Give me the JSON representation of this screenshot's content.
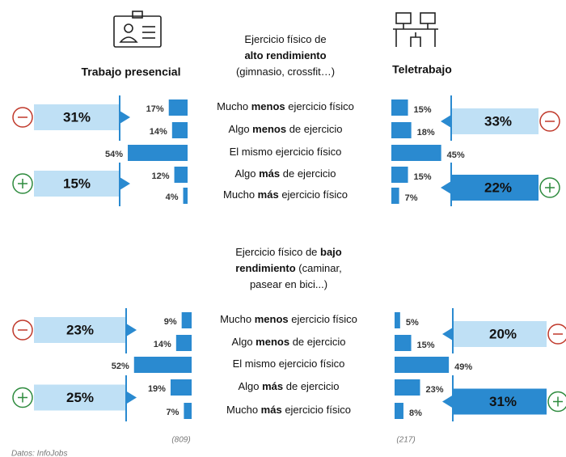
{
  "columns": [
    "Trabajo presencial",
    "Teletrabajo"
  ],
  "samples": [
    "(809)",
    "(217)"
  ],
  "source": "Datos: InfoJobs",
  "chart_data": [
    {
      "type": "bar",
      "title_lines": [
        [
          {
            "text": "Ejercicio físico de"
          }
        ],
        [
          {
            "text": "alto rendimiento",
            "bold": true
          }
        ],
        [
          {
            "text": "(gimnasio, crossfit…)"
          }
        ]
      ],
      "categories": [
        [
          {
            "text": "Mucho "
          },
          {
            "text": "menos",
            "bold": true
          },
          {
            "text": " ejercicio físico"
          }
        ],
        [
          {
            "text": "Algo "
          },
          {
            "text": "menos",
            "bold": true
          },
          {
            "text": " de ejercicio"
          }
        ],
        [
          {
            "text": "El mismo ejercicio físico"
          }
        ],
        [
          {
            "text": "Algo "
          },
          {
            "text": "más",
            "bold": true
          },
          {
            "text": " de ejercicio"
          }
        ],
        [
          {
            "text": "Mucho "
          },
          {
            "text": "más",
            "bold": true
          },
          {
            "text": " ejercicio físico"
          }
        ]
      ],
      "xlim": [
        0,
        100
      ],
      "series": [
        {
          "name": "Trabajo presencial",
          "color": "#2a8ad0",
          "values": [
            17,
            14,
            54,
            12,
            4
          ],
          "value_labels": [
            "17%",
            "14%",
            "54%",
            "12%",
            "4%"
          ],
          "summary": [
            {
              "value": 31,
              "label": "31%",
              "color": "#bfe0f5"
            },
            {
              "value": 15,
              "label": "15%",
              "color": "#bfe0f5"
            }
          ]
        },
        {
          "name": "Teletrabajo",
          "color": "#2a8ad0",
          "values": [
            15,
            18,
            45,
            15,
            7
          ],
          "value_labels": [
            "15%",
            "18%",
            "45%",
            "15%",
            "7%"
          ],
          "summary": [
            {
              "value": 33,
              "label": "33%",
              "color": "#bfe0f5"
            },
            {
              "value": 22,
              "label": "22%",
              "color": "#2a8ad0"
            }
          ]
        }
      ]
    },
    {
      "type": "bar",
      "title_lines": [
        [
          {
            "text": "Ejercicio físico de "
          },
          {
            "text": "bajo",
            "bold": true
          }
        ],
        [
          {
            "text": "rendimiento",
            "bold": true
          },
          {
            "text": " (caminar,"
          }
        ],
        [
          {
            "text": "pasear en bici...)"
          }
        ]
      ],
      "categories": [
        [
          {
            "text": "Mucho "
          },
          {
            "text": "menos",
            "bold": true
          },
          {
            "text": " ejercicio físico"
          }
        ],
        [
          {
            "text": "Algo "
          },
          {
            "text": "menos",
            "bold": true
          },
          {
            "text": " de ejercicio"
          }
        ],
        [
          {
            "text": "El mismo ejercicio físico"
          }
        ],
        [
          {
            "text": "Algo "
          },
          {
            "text": "más",
            "bold": true
          },
          {
            "text": " de ejercicio"
          }
        ],
        [
          {
            "text": "Mucho "
          },
          {
            "text": "más",
            "bold": true
          },
          {
            "text": " ejercicio físico"
          }
        ]
      ],
      "xlim": [
        0,
        100
      ],
      "series": [
        {
          "name": "Trabajo presencial",
          "color": "#2a8ad0",
          "values": [
            9,
            14,
            52,
            19,
            7
          ],
          "value_labels": [
            "9%",
            "14%",
            "52%",
            "19%",
            "7%"
          ],
          "summary": [
            {
              "value": 23,
              "label": "23%",
              "color": "#bfe0f5"
            },
            {
              "value": 25,
              "label": "25%",
              "color": "#bfe0f5"
            }
          ]
        },
        {
          "name": "Teletrabajo",
          "color": "#2a8ad0",
          "values": [
            5,
            15,
            49,
            23,
            8
          ],
          "value_labels": [
            "5%",
            "15%",
            "49%",
            "23%",
            "8%"
          ],
          "summary": [
            {
              "value": 20,
              "label": "20%",
              "color": "#bfe0f5"
            },
            {
              "value": 31,
              "label": "31%",
              "color": "#2a8ad0"
            }
          ]
        }
      ]
    }
  ]
}
